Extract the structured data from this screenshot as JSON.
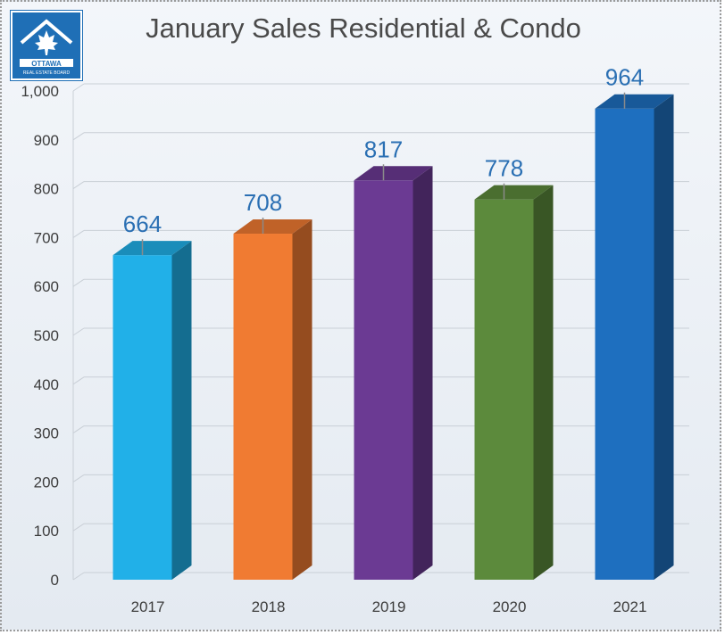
{
  "logo": {
    "text_top": "OTTAWA",
    "text_bottom": "REAL ESTATE BOARD"
  },
  "chart_data": {
    "type": "bar",
    "title": "January Sales Residential & Condo",
    "categories": [
      "2017",
      "2018",
      "2019",
      "2020",
      "2021"
    ],
    "values": [
      664,
      708,
      817,
      778,
      964
    ],
    "data_labels": [
      "664",
      "708",
      "817",
      "778",
      "964"
    ],
    "colors": [
      "#21b0e8",
      "#f07b32",
      "#6b3a93",
      "#5c8a3c",
      "#1e6fbf"
    ],
    "ylim": [
      0,
      1000
    ],
    "yticks": [
      0,
      100,
      200,
      300,
      400,
      500,
      600,
      700,
      800,
      900,
      1000
    ],
    "ytick_labels": [
      "0",
      "100",
      "200",
      "300",
      "400",
      "500",
      "600",
      "700",
      "800",
      "900",
      "1,000"
    ],
    "grid": true,
    "legend": "none",
    "xlabel": "",
    "ylabel": ""
  }
}
